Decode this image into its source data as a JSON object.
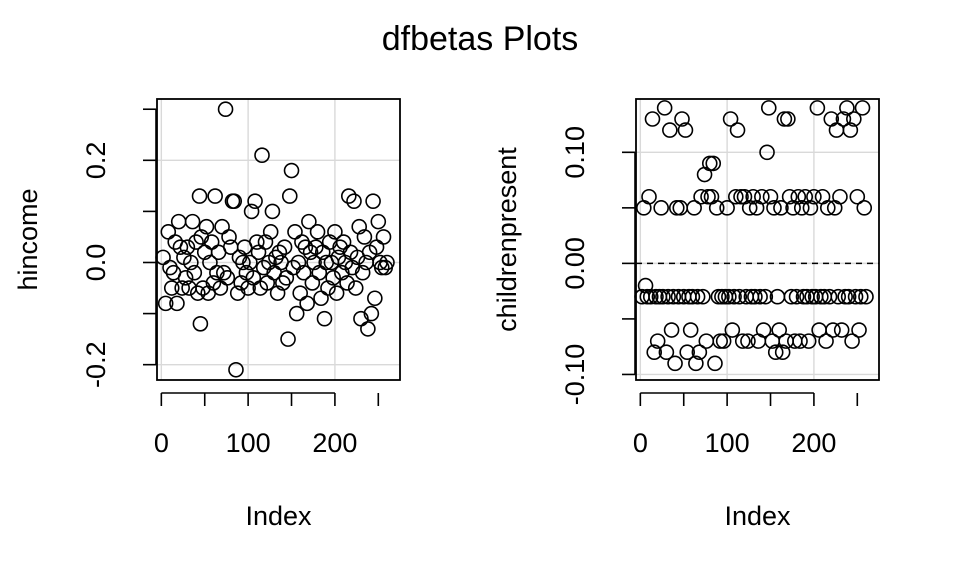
{
  "title": "dfbetas Plots",
  "chart_data": [
    {
      "type": "scatter",
      "title": "",
      "xlabel": "Index",
      "ylabel": "hincome",
      "xlim": [
        -5,
        275
      ],
      "ylim": [
        -0.23,
        0.32
      ],
      "xticks": [
        0,
        100,
        200
      ],
      "xtick_labels": [
        "0",
        "100",
        "200"
      ],
      "yticks": [
        -0.2,
        0.0,
        0.2
      ],
      "ytick_labels": [
        "-0.2",
        "0.0",
        "0.2"
      ],
      "grid": true,
      "reference_line": null,
      "points": [
        [
          2,
          0.01
        ],
        [
          5,
          -0.08
        ],
        [
          8,
          0.06
        ],
        [
          10,
          -0.01
        ],
        [
          12,
          -0.05
        ],
        [
          14,
          -0.02
        ],
        [
          16,
          0.04
        ],
        [
          18,
          -0.08
        ],
        [
          20,
          0.08
        ],
        [
          22,
          0.03
        ],
        [
          24,
          -0.05
        ],
        [
          26,
          0.01
        ],
        [
          28,
          -0.03
        ],
        [
          30,
          0.03
        ],
        [
          32,
          -0.05
        ],
        [
          34,
          0.0
        ],
        [
          36,
          0.08
        ],
        [
          38,
          -0.02
        ],
        [
          40,
          0.04
        ],
        [
          42,
          -0.06
        ],
        [
          44,
          0.13
        ],
        [
          45,
          -0.12
        ],
        [
          46,
          0.05
        ],
        [
          48,
          -0.05
        ],
        [
          50,
          0.02
        ],
        [
          52,
          0.07
        ],
        [
          54,
          -0.06
        ],
        [
          56,
          0.0
        ],
        [
          58,
          0.04
        ],
        [
          60,
          -0.04
        ],
        [
          62,
          0.13
        ],
        [
          64,
          -0.02
        ],
        [
          66,
          0.02
        ],
        [
          68,
          -0.05
        ],
        [
          70,
          0.07
        ],
        [
          72,
          -0.02
        ],
        [
          74,
          0.3
        ],
        [
          76,
          -0.03
        ],
        [
          78,
          0.05
        ],
        [
          80,
          0.03
        ],
        [
          82,
          0.12
        ],
        [
          84,
          0.12
        ],
        [
          86,
          -0.21
        ],
        [
          88,
          -0.06
        ],
        [
          90,
          0.01
        ],
        [
          92,
          -0.04
        ],
        [
          94,
          0.0
        ],
        [
          96,
          0.03
        ],
        [
          98,
          -0.02
        ],
        [
          100,
          -0.05
        ],
        [
          102,
          0.0
        ],
        [
          104,
          0.1
        ],
        [
          106,
          -0.03
        ],
        [
          108,
          0.12
        ],
        [
          110,
          0.04
        ],
        [
          112,
          0.02
        ],
        [
          114,
          -0.05
        ],
        [
          116,
          0.21
        ],
        [
          118,
          -0.01
        ],
        [
          120,
          0.04
        ],
        [
          122,
          -0.04
        ],
        [
          124,
          0.0
        ],
        [
          126,
          0.06
        ],
        [
          128,
          0.1
        ],
        [
          130,
          -0.02
        ],
        [
          132,
          0.01
        ],
        [
          134,
          -0.06
        ],
        [
          136,
          0.02
        ],
        [
          138,
          0.0
        ],
        [
          140,
          -0.04
        ],
        [
          142,
          0.03
        ],
        [
          144,
          -0.03
        ],
        [
          146,
          -0.15
        ],
        [
          148,
          0.13
        ],
        [
          150,
          0.18
        ],
        [
          152,
          -0.01
        ],
        [
          154,
          0.06
        ],
        [
          156,
          -0.1
        ],
        [
          158,
          0.0
        ],
        [
          160,
          -0.06
        ],
        [
          162,
          0.04
        ],
        [
          164,
          -0.02
        ],
        [
          166,
          0.03
        ],
        [
          168,
          -0.08
        ],
        [
          170,
          0.08
        ],
        [
          172,
          0.02
        ],
        [
          174,
          -0.04
        ],
        [
          176,
          0.0
        ],
        [
          178,
          0.03
        ],
        [
          180,
          0.06
        ],
        [
          182,
          -0.02
        ],
        [
          184,
          -0.07
        ],
        [
          186,
          0.02
        ],
        [
          188,
          -0.11
        ],
        [
          190,
          0.0
        ],
        [
          192,
          -0.05
        ],
        [
          194,
          0.04
        ],
        [
          196,
          0.0
        ],
        [
          198,
          -0.03
        ],
        [
          200,
          0.06
        ],
        [
          202,
          -0.06
        ],
        [
          204,
          0.01
        ],
        [
          206,
          0.03
        ],
        [
          208,
          -0.02
        ],
        [
          210,
          0.04
        ],
        [
          212,
          0.0
        ],
        [
          214,
          -0.04
        ],
        [
          216,
          0.13
        ],
        [
          218,
          0.02
        ],
        [
          220,
          -0.01
        ],
        [
          222,
          0.12
        ],
        [
          224,
          -0.05
        ],
        [
          226,
          0.01
        ],
        [
          228,
          0.07
        ],
        [
          230,
          -0.11
        ],
        [
          232,
          -0.02
        ],
        [
          234,
          0.05
        ],
        [
          236,
          0.0
        ],
        [
          238,
          -0.13
        ],
        [
          240,
          0.02
        ],
        [
          242,
          -0.1
        ],
        [
          244,
          0.12
        ],
        [
          246,
          -0.07
        ],
        [
          248,
          0.03
        ],
        [
          250,
          0.08
        ],
        [
          252,
          0.0
        ],
        [
          254,
          -0.01
        ],
        [
          256,
          0.05
        ],
        [
          258,
          -0.01
        ],
        [
          260,
          0.0
        ]
      ]
    },
    {
      "type": "scatter",
      "title": "",
      "xlabel": "Index",
      "ylabel": "childrenpresent",
      "xlim": [
        -5,
        275
      ],
      "ylim": [
        -0.105,
        0.148
      ],
      "xticks": [
        0,
        100,
        200
      ],
      "xtick_labels": [
        "0",
        "100",
        "200"
      ],
      "yticks": [
        -0.1,
        0.0,
        0.1
      ],
      "ytick_labels": [
        "-0.10",
        "0.00",
        "0.10"
      ],
      "grid": true,
      "reference_line": 0,
      "points": [
        [
          2,
          -0.03
        ],
        [
          4,
          0.05
        ],
        [
          6,
          -0.02
        ],
        [
          8,
          -0.03
        ],
        [
          10,
          0.06
        ],
        [
          12,
          -0.03
        ],
        [
          14,
          0.13
        ],
        [
          16,
          -0.08
        ],
        [
          18,
          -0.03
        ],
        [
          20,
          -0.07
        ],
        [
          22,
          -0.03
        ],
        [
          24,
          0.05
        ],
        [
          26,
          -0.03
        ],
        [
          28,
          0.14
        ],
        [
          30,
          -0.08
        ],
        [
          32,
          -0.03
        ],
        [
          34,
          0.12
        ],
        [
          36,
          -0.06
        ],
        [
          38,
          -0.03
        ],
        [
          40,
          -0.09
        ],
        [
          42,
          0.05
        ],
        [
          44,
          -0.03
        ],
        [
          46,
          0.05
        ],
        [
          48,
          0.13
        ],
        [
          50,
          -0.03
        ],
        [
          52,
          0.12
        ],
        [
          54,
          -0.08
        ],
        [
          56,
          -0.03
        ],
        [
          58,
          -0.06
        ],
        [
          60,
          -0.03
        ],
        [
          62,
          0.05
        ],
        [
          64,
          -0.09
        ],
        [
          66,
          -0.03
        ],
        [
          68,
          -0.08
        ],
        [
          70,
          0.06
        ],
        [
          72,
          -0.03
        ],
        [
          74,
          0.08
        ],
        [
          76,
          -0.07
        ],
        [
          78,
          0.06
        ],
        [
          80,
          0.09
        ],
        [
          82,
          0.06
        ],
        [
          84,
          0.09
        ],
        [
          86,
          -0.09
        ],
        [
          88,
          0.05
        ],
        [
          90,
          -0.03
        ],
        [
          92,
          -0.07
        ],
        [
          94,
          -0.03
        ],
        [
          96,
          -0.07
        ],
        [
          98,
          -0.03
        ],
        [
          100,
          0.05
        ],
        [
          102,
          -0.03
        ],
        [
          104,
          0.13
        ],
        [
          106,
          -0.06
        ],
        [
          108,
          -0.03
        ],
        [
          110,
          0.06
        ],
        [
          112,
          0.12
        ],
        [
          114,
          -0.03
        ],
        [
          116,
          0.06
        ],
        [
          118,
          -0.07
        ],
        [
          120,
          0.06
        ],
        [
          122,
          -0.03
        ],
        [
          124,
          -0.07
        ],
        [
          126,
          0.05
        ],
        [
          128,
          -0.03
        ],
        [
          130,
          0.06
        ],
        [
          132,
          -0.03
        ],
        [
          134,
          0.05
        ],
        [
          136,
          -0.07
        ],
        [
          138,
          -0.03
        ],
        [
          140,
          0.06
        ],
        [
          142,
          -0.06
        ],
        [
          144,
          -0.03
        ],
        [
          146,
          0.1
        ],
        [
          148,
          0.14
        ],
        [
          150,
          0.06
        ],
        [
          152,
          -0.07
        ],
        [
          154,
          0.05
        ],
        [
          156,
          -0.08
        ],
        [
          158,
          -0.03
        ],
        [
          160,
          -0.06
        ],
        [
          162,
          0.05
        ],
        [
          164,
          -0.08
        ],
        [
          166,
          0.13
        ],
        [
          168,
          -0.07
        ],
        [
          170,
          0.13
        ],
        [
          172,
          0.06
        ],
        [
          174,
          -0.03
        ],
        [
          176,
          0.05
        ],
        [
          178,
          -0.07
        ],
        [
          180,
          -0.03
        ],
        [
          182,
          0.06
        ],
        [
          184,
          -0.07
        ],
        [
          186,
          0.05
        ],
        [
          188,
          -0.03
        ],
        [
          190,
          0.06
        ],
        [
          192,
          -0.03
        ],
        [
          194,
          -0.07
        ],
        [
          196,
          0.05
        ],
        [
          198,
          -0.03
        ],
        [
          200,
          0.06
        ],
        [
          202,
          -0.03
        ],
        [
          204,
          0.14
        ],
        [
          206,
          -0.06
        ],
        [
          208,
          -0.03
        ],
        [
          210,
          0.06
        ],
        [
          212,
          -0.03
        ],
        [
          214,
          -0.07
        ],
        [
          216,
          0.05
        ],
        [
          218,
          -0.03
        ],
        [
          220,
          0.13
        ],
        [
          222,
          -0.06
        ],
        [
          224,
          0.05
        ],
        [
          226,
          0.12
        ],
        [
          228,
          -0.03
        ],
        [
          230,
          0.06
        ],
        [
          232,
          -0.06
        ],
        [
          234,
          0.13
        ],
        [
          236,
          -0.03
        ],
        [
          238,
          0.14
        ],
        [
          240,
          -0.03
        ],
        [
          242,
          0.12
        ],
        [
          244,
          -0.07
        ],
        [
          246,
          0.13
        ],
        [
          248,
          -0.03
        ],
        [
          250,
          0.06
        ],
        [
          252,
          -0.06
        ],
        [
          254,
          -0.03
        ],
        [
          256,
          0.14
        ],
        [
          258,
          0.05
        ],
        [
          260,
          -0.03
        ]
      ]
    }
  ]
}
